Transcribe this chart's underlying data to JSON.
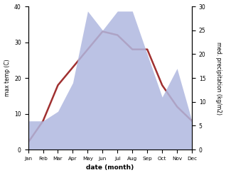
{
  "months": [
    "Jan",
    "Feb",
    "Mar",
    "Apr",
    "May",
    "Jun",
    "Jul",
    "Aug",
    "Sep",
    "Oct",
    "Nov",
    "Dec"
  ],
  "temperature": [
    2,
    8,
    18,
    23,
    28,
    33,
    32,
    28,
    28,
    18,
    12,
    8
  ],
  "precipitation": [
    6,
    6,
    8,
    14,
    29,
    25,
    29,
    29,
    20,
    11,
    17,
    6
  ],
  "temp_ylim": [
    0,
    40
  ],
  "precip_ylim": [
    0,
    30
  ],
  "temp_color": "#a03030",
  "precip_fill_color": "#b0b8e0",
  "temp_linewidth": 1.8,
  "ylabel_left": "max temp (C)",
  "ylabel_right": "med. precipitation (kg/m2)",
  "xlabel": "date (month)",
  "bg_color": "#ffffff"
}
